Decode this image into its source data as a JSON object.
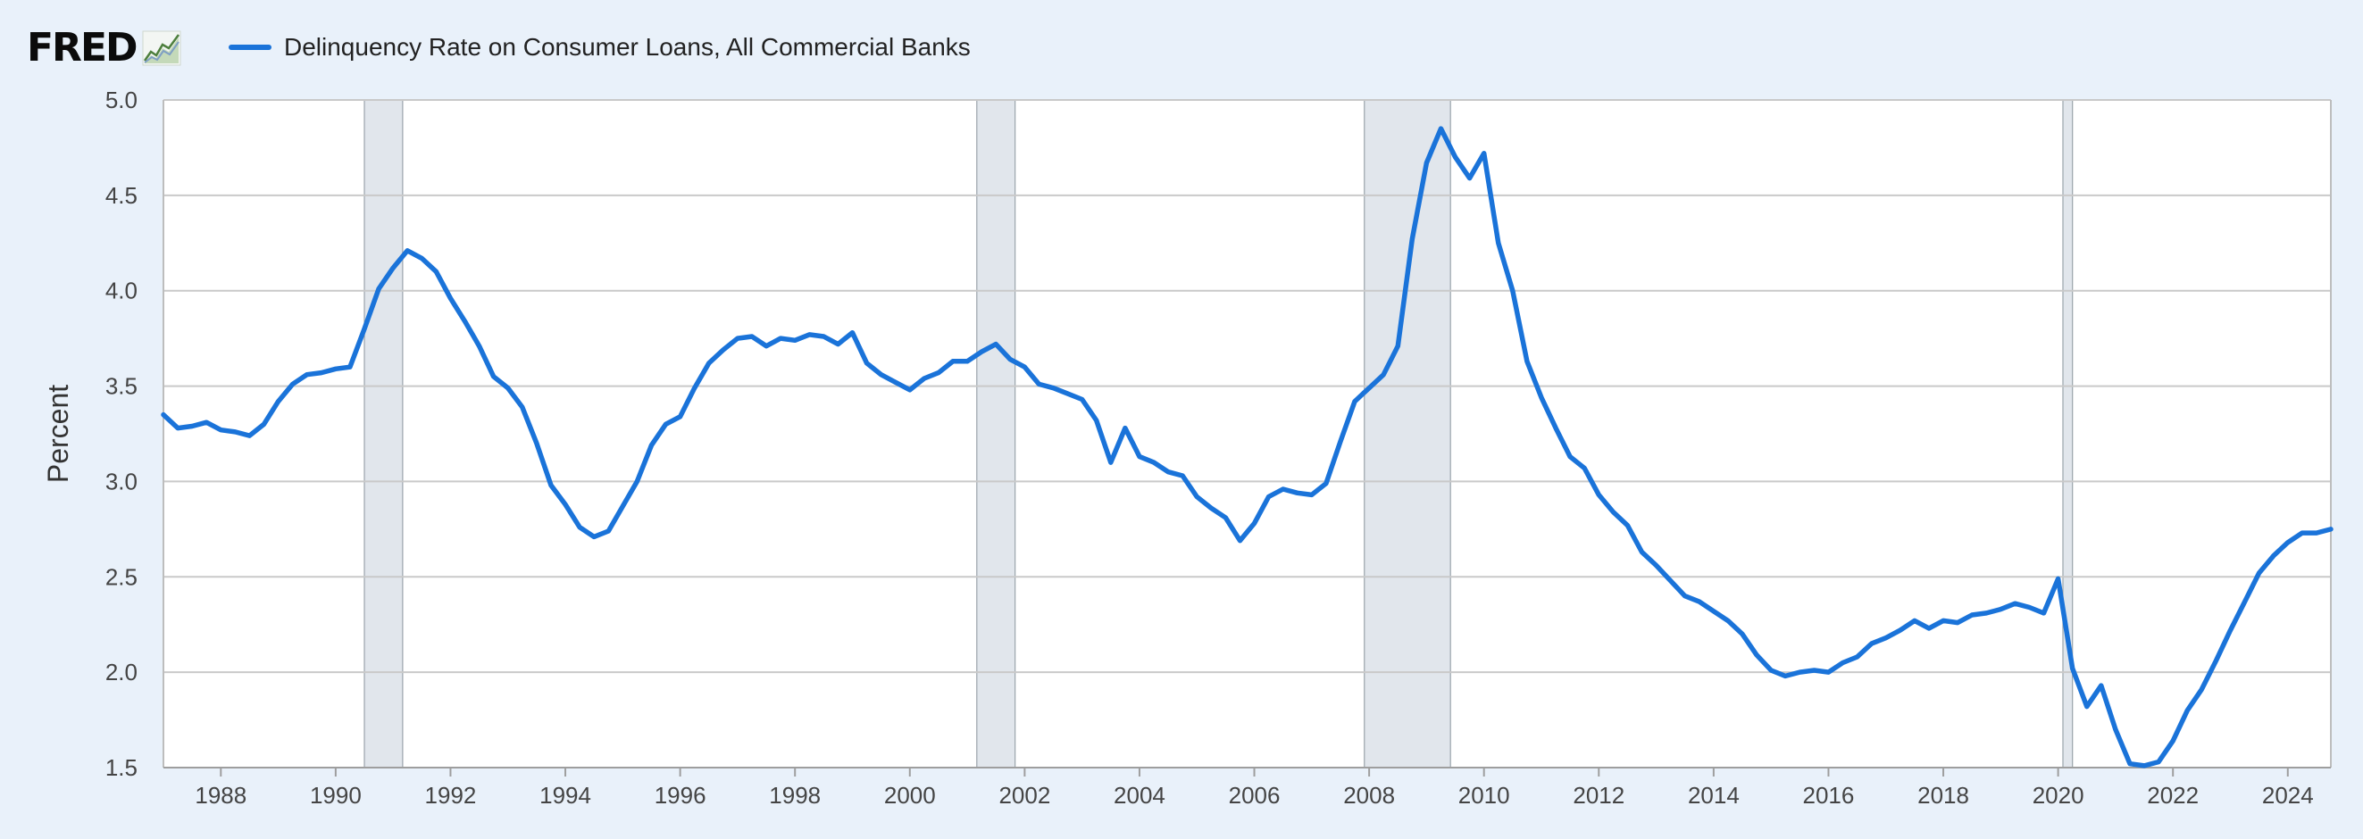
{
  "header": {
    "logo_text": "FRED",
    "logo_icon": "line-chart-icon",
    "series_label": "Delinquency Rate on Consumer Loans, All Commercial Banks"
  },
  "colors": {
    "background": "#e9f1fa",
    "plot_background": "#ffffff",
    "series": "#1a73d9",
    "recession_band": "#e1e6ec",
    "gridline": "#c9c9c9"
  },
  "chart_data": {
    "type": "line",
    "title": "",
    "xlabel": "",
    "ylabel": "Percent",
    "ylim": [
      1.5,
      5.0
    ],
    "xlim": [
      "1987-01-01",
      "2024-10-01"
    ],
    "grid": true,
    "legend_position": "top-left",
    "yticks": [
      "1.5",
      "2.0",
      "2.5",
      "3.0",
      "3.5",
      "4.0",
      "4.5",
      "5.0"
    ],
    "xticks": [
      "1988",
      "1990",
      "1992",
      "1994",
      "1996",
      "1998",
      "2000",
      "2002",
      "2004",
      "2006",
      "2008",
      "2010",
      "2012",
      "2014",
      "2016",
      "2018",
      "2020",
      "2022",
      "2024"
    ],
    "recessions": [
      [
        "1990-07-01",
        "1991-03-01"
      ],
      [
        "2001-03-01",
        "2001-11-01"
      ],
      [
        "2007-12-01",
        "2009-06-01"
      ],
      [
        "2020-02-01",
        "2020-04-01"
      ]
    ],
    "series": [
      {
        "name": "Delinquency Rate on Consumer Loans, All Commercial Banks",
        "x": [
          "1987-01-01",
          "1987-04-01",
          "1987-07-01",
          "1987-10-01",
          "1988-01-01",
          "1988-04-01",
          "1988-07-01",
          "1988-10-01",
          "1989-01-01",
          "1989-04-01",
          "1989-07-01",
          "1989-10-01",
          "1990-01-01",
          "1990-04-01",
          "1990-07-01",
          "1990-10-01",
          "1991-01-01",
          "1991-04-01",
          "1991-07-01",
          "1991-10-01",
          "1992-01-01",
          "1992-04-01",
          "1992-07-01",
          "1992-10-01",
          "1993-01-01",
          "1993-04-01",
          "1993-07-01",
          "1993-10-01",
          "1994-01-01",
          "1994-04-01",
          "1994-07-01",
          "1994-10-01",
          "1995-01-01",
          "1995-04-01",
          "1995-07-01",
          "1995-10-01",
          "1996-01-01",
          "1996-04-01",
          "1996-07-01",
          "1996-10-01",
          "1997-01-01",
          "1997-04-01",
          "1997-07-01",
          "1997-10-01",
          "1998-01-01",
          "1998-04-01",
          "1998-07-01",
          "1998-10-01",
          "1999-01-01",
          "1999-04-01",
          "1999-07-01",
          "1999-10-01",
          "2000-01-01",
          "2000-04-01",
          "2000-07-01",
          "2000-10-01",
          "2001-01-01",
          "2001-04-01",
          "2001-07-01",
          "2001-10-01",
          "2002-01-01",
          "2002-04-01",
          "2002-07-01",
          "2002-10-01",
          "2003-01-01",
          "2003-04-01",
          "2003-07-01",
          "2003-10-01",
          "2004-01-01",
          "2004-04-01",
          "2004-07-01",
          "2004-10-01",
          "2005-01-01",
          "2005-04-01",
          "2005-07-01",
          "2005-10-01",
          "2006-01-01",
          "2006-04-01",
          "2006-07-01",
          "2006-10-01",
          "2007-01-01",
          "2007-04-01",
          "2007-07-01",
          "2007-10-01",
          "2008-01-01",
          "2008-04-01",
          "2008-07-01",
          "2008-10-01",
          "2009-01-01",
          "2009-04-01",
          "2009-07-01",
          "2009-10-01",
          "2010-01-01",
          "2010-04-01",
          "2010-07-01",
          "2010-10-01",
          "2011-01-01",
          "2011-04-01",
          "2011-07-01",
          "2011-10-01",
          "2012-01-01",
          "2012-04-01",
          "2012-07-01",
          "2012-10-01",
          "2013-01-01",
          "2013-04-01",
          "2013-07-01",
          "2013-10-01",
          "2014-01-01",
          "2014-04-01",
          "2014-07-01",
          "2014-10-01",
          "2015-01-01",
          "2015-04-01",
          "2015-07-01",
          "2015-10-01",
          "2016-01-01",
          "2016-04-01",
          "2016-07-01",
          "2016-10-01",
          "2017-01-01",
          "2017-04-01",
          "2017-07-01",
          "2017-10-01",
          "2018-01-01",
          "2018-04-01",
          "2018-07-01",
          "2018-10-01",
          "2019-01-01",
          "2019-04-01",
          "2019-07-01",
          "2019-10-01",
          "2020-01-01",
          "2020-04-01",
          "2020-07-01",
          "2020-10-01",
          "2021-01-01",
          "2021-04-01",
          "2021-07-01",
          "2021-10-01",
          "2022-01-01",
          "2022-04-01",
          "2022-07-01",
          "2022-10-01",
          "2023-01-01",
          "2023-04-01",
          "2023-07-01",
          "2023-10-01",
          "2024-01-01",
          "2024-04-01",
          "2024-07-01",
          "2024-10-01"
        ],
        "values": [
          3.35,
          3.28,
          3.29,
          3.31,
          3.27,
          3.26,
          3.24,
          3.3,
          3.42,
          3.51,
          3.56,
          3.57,
          3.59,
          3.6,
          3.8,
          4.01,
          4.12,
          4.21,
          4.17,
          4.1,
          3.96,
          3.84,
          3.71,
          3.55,
          3.49,
          3.39,
          3.2,
          2.98,
          2.88,
          2.76,
          2.71,
          2.74,
          2.87,
          3.0,
          3.19,
          3.3,
          3.34,
          3.49,
          3.62,
          3.69,
          3.75,
          3.76,
          3.71,
          3.75,
          3.74,
          3.77,
          3.76,
          3.72,
          3.78,
          3.62,
          3.56,
          3.52,
          3.48,
          3.54,
          3.57,
          3.63,
          3.63,
          3.68,
          3.72,
          3.64,
          3.6,
          3.51,
          3.49,
          3.46,
          3.43,
          3.32,
          3.1,
          3.28,
          3.13,
          3.1,
          3.05,
          3.03,
          2.92,
          2.86,
          2.81,
          2.69,
          2.78,
          2.92,
          2.96,
          2.94,
          2.93,
          2.99,
          3.21,
          3.42,
          3.49,
          3.56,
          3.71,
          4.27,
          4.67,
          4.85,
          4.7,
          4.59,
          4.72,
          4.25,
          4.0,
          3.63,
          3.44,
          3.28,
          3.13,
          3.07,
          2.93,
          2.84,
          2.77,
          2.63,
          2.56,
          2.48,
          2.4,
          2.37,
          2.32,
          2.27,
          2.2,
          2.09,
          2.01,
          1.98,
          2.0,
          2.01,
          2.0,
          2.05,
          2.08,
          2.15,
          2.18,
          2.22,
          2.27,
          2.23,
          2.27,
          2.26,
          2.3,
          2.31,
          2.33,
          2.36,
          2.34,
          2.31,
          2.49,
          2.02,
          1.82,
          1.93,
          1.7,
          1.52,
          1.51,
          1.53,
          1.64,
          1.8,
          1.91,
          2.06,
          2.22,
          2.37,
          2.52,
          2.61,
          2.68,
          2.73,
          2.73,
          2.75
        ]
      }
    ]
  }
}
